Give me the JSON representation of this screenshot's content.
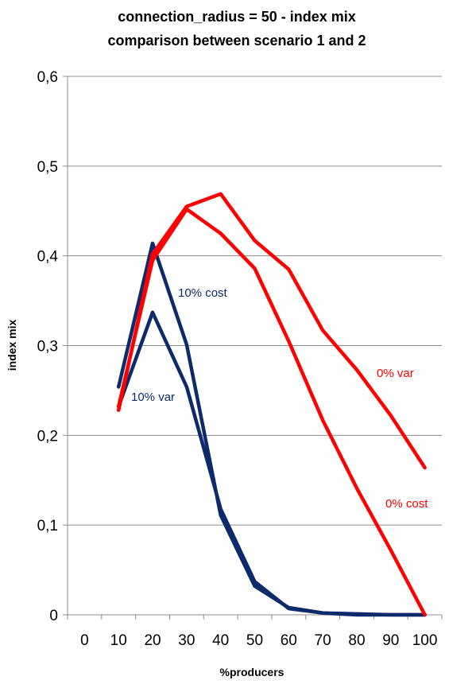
{
  "chart_data": {
    "type": "line",
    "title": "connection_radius = 50 - index mix",
    "subtitle": "comparison between scenario 1 and 2",
    "xlabel": "%producers",
    "ylabel": "index mix",
    "categories": [
      "0",
      "10",
      "20",
      "30",
      "40",
      "50",
      "60",
      "70",
      "80",
      "90",
      "100"
    ],
    "ylim": [
      0,
      0.6
    ],
    "yticks": [
      "0",
      "0,1",
      "0,2",
      "0,3",
      "0,4",
      "0,5",
      "0,6"
    ],
    "grid": "horizontal",
    "series": [
      {
        "name": "10% cost",
        "color": "#0d2a6b",
        "x": [
          10,
          20,
          30,
          40,
          50,
          60,
          70,
          80,
          90,
          100
        ],
        "values": [
          0.254,
          0.414,
          0.301,
          0.111,
          0.032,
          0.008,
          0.002,
          0.001,
          0.0,
          0.0
        ]
      },
      {
        "name": "10% var",
        "color": "#0d2a6b",
        "x": [
          10,
          20,
          30,
          40,
          50,
          60,
          70,
          80,
          90,
          100
        ],
        "values": [
          0.232,
          0.337,
          0.254,
          0.118,
          0.037,
          0.007,
          0.002,
          0.0,
          0.0,
          0.0
        ]
      },
      {
        "name": "0% cost",
        "color": "#ff0000",
        "x": [
          10,
          20,
          30,
          40,
          50,
          60,
          70,
          80,
          90,
          100
        ],
        "values": [
          0.232,
          0.395,
          0.452,
          0.425,
          0.386,
          0.305,
          0.217,
          0.141,
          0.072,
          0.0
        ]
      },
      {
        "name": "0% var",
        "color": "#ff0000",
        "x": [
          10,
          20,
          30,
          40,
          50,
          60,
          70,
          80,
          90,
          100
        ],
        "values": [
          0.228,
          0.402,
          0.455,
          0.469,
          0.417,
          0.385,
          0.317,
          0.273,
          0.222,
          0.164
        ]
      }
    ]
  }
}
